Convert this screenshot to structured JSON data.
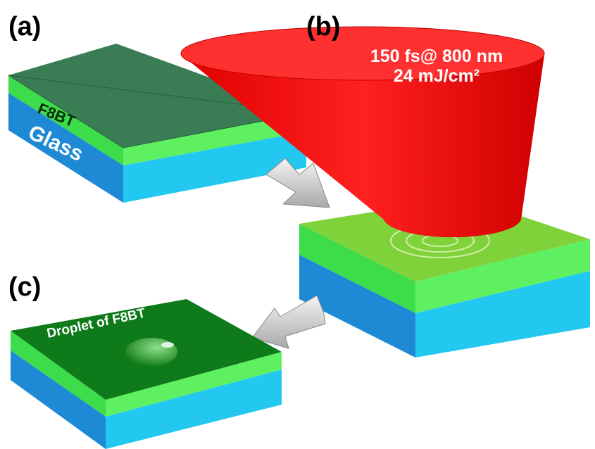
{
  "panels": [
    {
      "label": "(a)",
      "layers": [
        "F8BT",
        "Glass"
      ]
    },
    {
      "label": "(b)",
      "laser": [
        "150 fs@ 800 nm",
        "24 mJ/cm²"
      ]
    },
    {
      "label": "(c)",
      "annotation": "Droplet of F8BT"
    }
  ]
}
